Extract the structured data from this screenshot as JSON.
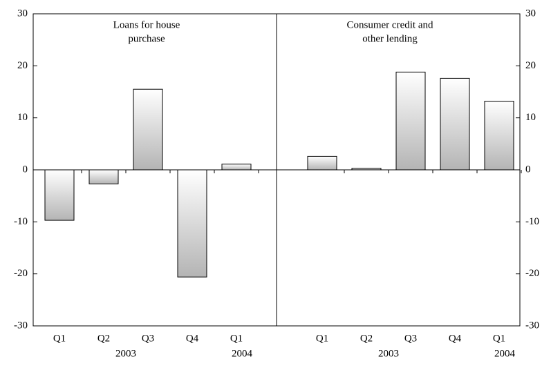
{
  "chart_data": [
    {
      "type": "bar",
      "title": [
        "Loans for house",
        "purchase"
      ],
      "categories": [
        "Q1",
        "Q2",
        "Q3",
        "Q4",
        "Q1"
      ],
      "years": [
        "2003",
        "2004"
      ],
      "values": [
        -9.7,
        -2.7,
        15.5,
        -20.6,
        1.1
      ],
      "ylim": [
        -30,
        30
      ],
      "yticks": [
        -30,
        -20,
        -10,
        0,
        10,
        20,
        30
      ],
      "axis_side": "left"
    },
    {
      "type": "bar",
      "title": [
        "Consumer credit and",
        "other lending"
      ],
      "categories": [
        "Q1",
        "Q2",
        "Q3",
        "Q4",
        "Q1"
      ],
      "years": [
        "2003",
        "2004"
      ],
      "values": [
        2.6,
        0.3,
        18.8,
        17.6,
        13.2
      ],
      "ylim": [
        -30,
        30
      ],
      "yticks": [
        -30,
        -20,
        -10,
        0,
        10,
        20,
        30
      ],
      "axis_side": "right"
    }
  ]
}
